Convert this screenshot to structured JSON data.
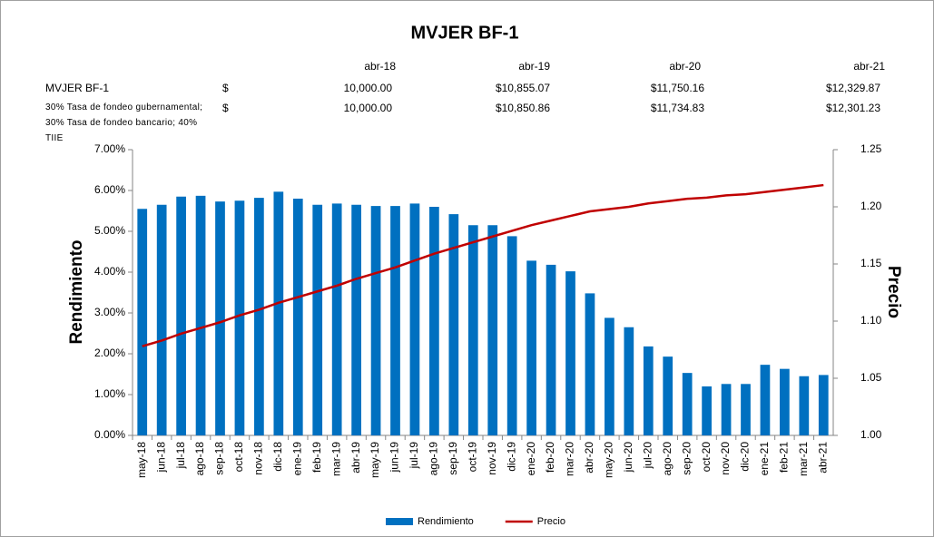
{
  "chart_data": {
    "type": "bar_line",
    "title": "MVJER BF-1",
    "ylabel": "Rendimiento",
    "y2label": "Precio",
    "categories": [
      "may-18",
      "jun-18",
      "jul-18",
      "ago-18",
      "sep-18",
      "oct-18",
      "nov-18",
      "dic-18",
      "ene-19",
      "feb-19",
      "mar-19",
      "abr-19",
      "may-19",
      "jun-19",
      "jul-19",
      "ago-19",
      "sep-19",
      "oct-19",
      "nov-19",
      "dic-19",
      "ene-20",
      "feb-20",
      "mar-20",
      "abr-20",
      "may-20",
      "jun-20",
      "jul-20",
      "ago-20",
      "sep-20",
      "oct-20",
      "nov-20",
      "dic-20",
      "ene-21",
      "feb-21",
      "mar-21",
      "abr-21"
    ],
    "series": [
      {
        "name": "Rendimiento",
        "color": "#0070c0",
        "kind": "bar",
        "axis": "y",
        "values": [
          5.55,
          5.65,
          5.85,
          5.87,
          5.73,
          5.75,
          5.82,
          5.97,
          5.8,
          5.65,
          5.68,
          5.65,
          5.62,
          5.62,
          5.68,
          5.6,
          5.42,
          5.15,
          5.15,
          4.88,
          4.28,
          4.18,
          4.02,
          3.48,
          2.88,
          2.65,
          2.18,
          1.93,
          1.53,
          1.2,
          1.26,
          1.26,
          1.73,
          1.63,
          1.45,
          1.48
        ]
      },
      {
        "name": "Precio",
        "color": "#c00000",
        "kind": "line",
        "axis": "y2",
        "values": [
          1.078,
          1.083,
          1.089,
          1.094,
          1.099,
          1.105,
          1.11,
          1.116,
          1.121,
          1.126,
          1.131,
          1.137,
          1.142,
          1.147,
          1.153,
          1.159,
          1.164,
          1.169,
          1.174,
          1.179,
          1.184,
          1.188,
          1.192,
          1.196,
          1.198,
          1.2,
          1.203,
          1.205,
          1.207,
          1.208,
          1.21,
          1.211,
          1.213,
          1.215,
          1.217,
          1.219
        ]
      }
    ],
    "ylim": [
      0,
      7
    ],
    "yticks": [
      {
        "value": 0,
        "label": "0.00%"
      },
      {
        "value": 1,
        "label": "1.00%"
      },
      {
        "value": 2,
        "label": "2.00%"
      },
      {
        "value": 3,
        "label": "3.00%"
      },
      {
        "value": 4,
        "label": "4.00%"
      },
      {
        "value": 5,
        "label": "5.00%"
      },
      {
        "value": 6,
        "label": "6.00%"
      },
      {
        "value": 7,
        "label": "7.00%"
      }
    ],
    "y2lim": [
      1,
      1.25
    ],
    "y2ticks": [
      {
        "value": 1,
        "label": "1.00"
      },
      {
        "value": 1.05,
        "label": "1.05"
      },
      {
        "value": 1.1,
        "label": "1.10"
      },
      {
        "value": 1.15,
        "label": "1.15"
      },
      {
        "value": 1.2,
        "label": "1.20"
      },
      {
        "value": 1.25,
        "label": "1.25"
      }
    ],
    "grid": false,
    "legend": "bottom"
  },
  "table": {
    "header": [
      "abr-18",
      "abr-19",
      "abr-20",
      "abr-21"
    ],
    "rows": [
      [
        "MVJER BF-1",
        "$",
        "10,000.00",
        "$10,855.07",
        "$11,750.16",
        "$12,329.87"
      ],
      [
        "30% Tasa de fondeo gubernamental; 30% Tasa de fondeo bancario; 40% TIIE",
        "$",
        "10,000.00",
        "$10,850.86",
        "$11,734.83",
        "$12,301.23"
      ]
    ]
  }
}
